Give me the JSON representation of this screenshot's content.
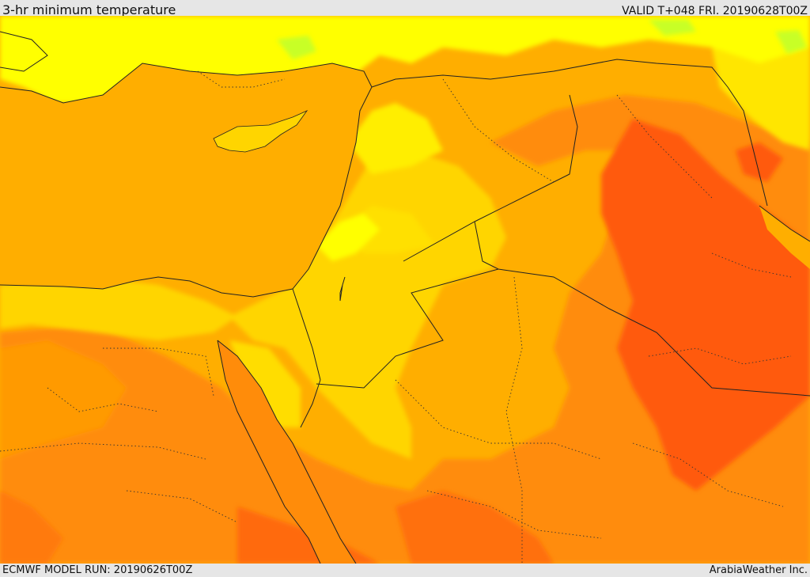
{
  "header": {
    "title": "3-hr minimum temperature",
    "valid": "VALID T+048 FRI. 20190628T00Z"
  },
  "footer": {
    "model_run": "ECMWF MODEL RUN: 20190626T00Z",
    "credit": "ArabiaWeather Inc."
  },
  "colors": {
    "very_hot": "#ff5a0a",
    "hot": "#ff8c0a",
    "warm": "#ffae00",
    "mild_warm": "#ffd500",
    "mild": "#ffff00",
    "cool": "#c8ff28",
    "borders": "#222222"
  },
  "icons": {
    "map": "temperature-map"
  }
}
